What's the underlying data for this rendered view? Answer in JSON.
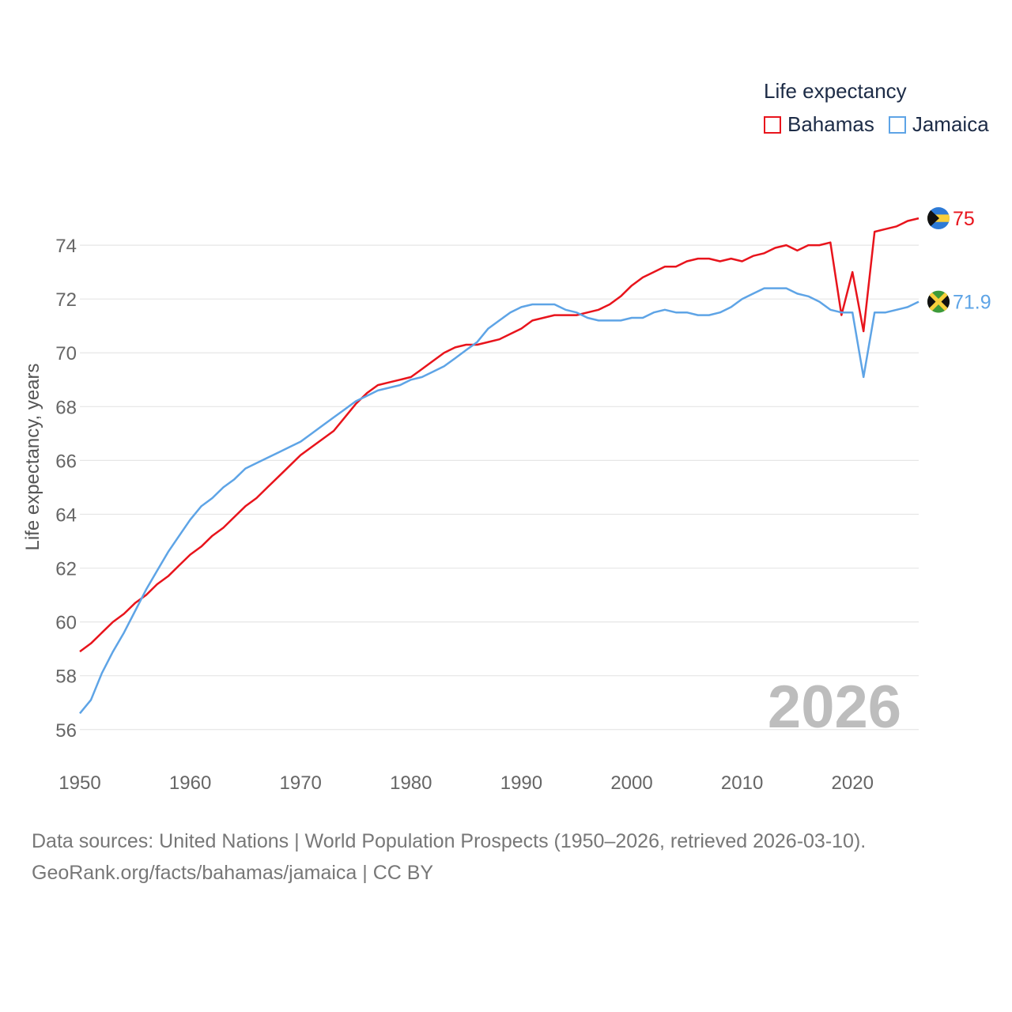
{
  "chart_data": {
    "type": "line",
    "title": "Life expectancy",
    "ylabel": "Life expectancy, years",
    "xlabel": "",
    "xlim": [
      1950,
      2026
    ],
    "ylim": [
      55.2,
      76.5
    ],
    "x_ticks": [
      1950,
      1960,
      1970,
      1980,
      1990,
      2000,
      2010,
      2020
    ],
    "y_ticks": [
      56,
      58,
      60,
      62,
      64,
      66,
      68,
      70,
      72,
      74
    ],
    "grid": true,
    "legend_position": "top-right",
    "year_watermark": "2026",
    "x": [
      1950,
      1951,
      1952,
      1953,
      1954,
      1955,
      1956,
      1957,
      1958,
      1959,
      1960,
      1961,
      1962,
      1963,
      1964,
      1965,
      1966,
      1967,
      1968,
      1969,
      1970,
      1971,
      1972,
      1973,
      1974,
      1975,
      1976,
      1977,
      1978,
      1979,
      1980,
      1981,
      1982,
      1983,
      1984,
      1985,
      1986,
      1987,
      1988,
      1989,
      1990,
      1991,
      1992,
      1993,
      1994,
      1995,
      1996,
      1997,
      1998,
      1999,
      2000,
      2001,
      2002,
      2003,
      2004,
      2005,
      2006,
      2007,
      2008,
      2009,
      2010,
      2011,
      2012,
      2013,
      2014,
      2015,
      2016,
      2017,
      2018,
      2019,
      2020,
      2021,
      2022,
      2023,
      2024,
      2025,
      2026
    ],
    "series": [
      {
        "name": "Bahamas",
        "color": "#e8141c",
        "end_label": "75",
        "flag": "bahamas-flag",
        "values": [
          58.9,
          59.2,
          59.6,
          60.0,
          60.3,
          60.7,
          61.0,
          61.4,
          61.7,
          62.1,
          62.5,
          62.8,
          63.2,
          63.5,
          63.9,
          64.3,
          64.6,
          65.0,
          65.4,
          65.8,
          66.2,
          66.5,
          66.8,
          67.1,
          67.6,
          68.1,
          68.5,
          68.8,
          68.9,
          69.0,
          69.1,
          69.4,
          69.7,
          70.0,
          70.2,
          70.3,
          70.3,
          70.4,
          70.5,
          70.7,
          70.9,
          71.2,
          71.3,
          71.4,
          71.4,
          71.4,
          71.5,
          71.6,
          71.8,
          72.1,
          72.5,
          72.8,
          73.0,
          73.2,
          73.2,
          73.4,
          73.5,
          73.5,
          73.4,
          73.5,
          73.4,
          73.6,
          73.7,
          73.9,
          74.0,
          73.8,
          74.0,
          74.0,
          74.1,
          71.4,
          73.0,
          70.8,
          74.5,
          74.6,
          74.7,
          74.9,
          75.0
        ]
      },
      {
        "name": "Jamaica",
        "color": "#5ea4e6",
        "end_label": "71.9",
        "flag": "jamaica-flag",
        "values": [
          56.6,
          57.1,
          58.1,
          58.9,
          59.6,
          60.4,
          61.2,
          61.9,
          62.6,
          63.2,
          63.8,
          64.3,
          64.6,
          65.0,
          65.3,
          65.7,
          65.9,
          66.1,
          66.3,
          66.5,
          66.7,
          67.0,
          67.3,
          67.6,
          67.9,
          68.2,
          68.4,
          68.6,
          68.7,
          68.8,
          69.0,
          69.1,
          69.3,
          69.5,
          69.8,
          70.1,
          70.4,
          70.9,
          71.2,
          71.5,
          71.7,
          71.8,
          71.8,
          71.8,
          71.6,
          71.5,
          71.3,
          71.2,
          71.2,
          71.2,
          71.3,
          71.3,
          71.5,
          71.6,
          71.5,
          71.5,
          71.4,
          71.4,
          71.5,
          71.7,
          72.0,
          72.2,
          72.4,
          72.4,
          72.4,
          72.2,
          72.1,
          71.9,
          71.6,
          71.5,
          71.5,
          69.1,
          71.5,
          71.5,
          71.6,
          71.7,
          71.9
        ]
      }
    ]
  },
  "legend": {
    "title": "Life expectancy",
    "items": [
      {
        "label": "Bahamas",
        "color": "#e8141c"
      },
      {
        "label": "Jamaica",
        "color": "#5ea4e6"
      }
    ]
  },
  "footer": {
    "line1": "Data sources: United Nations | World Population Prospects (1950–2026, retrieved 2026-03-10).",
    "line2": "GeoRank.org/facts/bahamas/jamaica | CC BY"
  }
}
